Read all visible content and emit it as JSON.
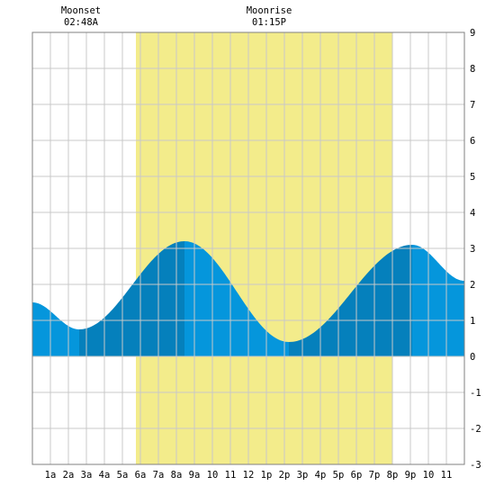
{
  "chart_data": {
    "type": "area",
    "x_ticks": [
      "1a",
      "2a",
      "3a",
      "4a",
      "5a",
      "6a",
      "7a",
      "8a",
      "9a",
      "10",
      "11",
      "12",
      "1p",
      "2p",
      "3p",
      "4p",
      "5p",
      "6p",
      "7p",
      "8p",
      "9p",
      "10",
      "11"
    ],
    "y_ticks": [
      "9",
      "8",
      "7",
      "6",
      "5",
      "4",
      "3",
      "2",
      "1",
      "0",
      "-1",
      "-2",
      "-3"
    ],
    "ylim": [
      -3,
      9
    ],
    "xlim_hours": [
      0,
      24
    ],
    "grid": true,
    "daylight_hours": [
      5.75,
      20.0
    ],
    "series": [
      {
        "x_hours": [
          0,
          2.6,
          8.45,
          14.25,
          21.1,
          24
        ],
        "y": [
          1.5,
          0.75,
          3.2,
          0.4,
          3.1,
          2.1
        ]
      }
    ],
    "annotations": [
      {
        "title": "Moonset",
        "time": "02:48A",
        "hour": 2.8
      },
      {
        "title": "Moonrise",
        "time": "01:15P",
        "hour": 13.25
      }
    ],
    "colors": {
      "daylight": "#f3ec8b",
      "tide_light": "#0596dc",
      "tide_dark": "#0580bc",
      "grid": "#c8c8c8",
      "frame": "#808080"
    }
  }
}
